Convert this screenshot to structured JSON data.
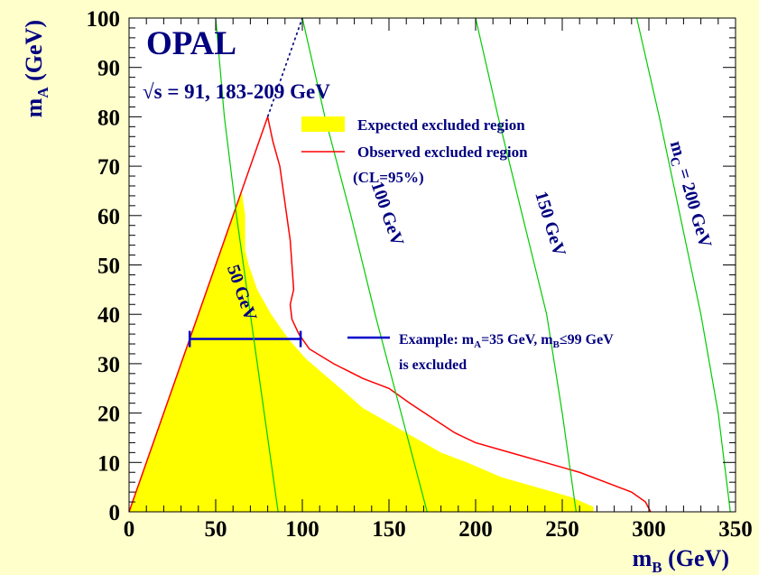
{
  "chart_data": {
    "type": "area",
    "experiment_label": "OPAL",
    "energy_label": "√s = 91, 183-209 GeV",
    "xlabel": "m",
    "xlabel_sub": "B",
    "xlabel_unit": " (GeV)",
    "ylabel": "m",
    "ylabel_sub": "A",
    "ylabel_unit": " (GeV)",
    "xlim": [
      0,
      350
    ],
    "ylim": [
      0,
      100
    ],
    "x_ticks": [
      0,
      50,
      100,
      150,
      200,
      250,
      300,
      350
    ],
    "y_ticks": [
      0,
      10,
      20,
      30,
      40,
      50,
      60,
      70,
      80,
      90,
      100
    ],
    "legend": {
      "expected": "Expected excluded region",
      "observed": "Observed excluded region",
      "cl": "(CL=95%)",
      "example_line1_pre": "Example: m",
      "example_line1_sub1": "A",
      "example_line1_mid": "=35 GeV, m",
      "example_line1_sub2": "B",
      "example_line1_post": "≤99 GeV",
      "example_line2": "is excluded"
    },
    "colors": {
      "background": "#ffffcc",
      "plot_area": "#ffffff",
      "expected_fill": "#ffff00",
      "observed_line": "#ff0000",
      "contour_line": "#00cc00",
      "example_line": "#0000cc",
      "text": "#000080"
    },
    "expected_region": [
      [
        0,
        0
      ],
      [
        65,
        65
      ],
      [
        67,
        60
      ],
      [
        67,
        53
      ],
      [
        69,
        50
      ],
      [
        74,
        45
      ],
      [
        82,
        40
      ],
      [
        92,
        35
      ],
      [
        102,
        31
      ],
      [
        112,
        28
      ],
      [
        122,
        25
      ],
      [
        135,
        21
      ],
      [
        150,
        18
      ],
      [
        165,
        15
      ],
      [
        180,
        12
      ],
      [
        195,
        10
      ],
      [
        215,
        7
      ],
      [
        235,
        5
      ],
      [
        255,
        3
      ],
      [
        268,
        1
      ],
      [
        268,
        0
      ]
    ],
    "observed_boundary": [
      [
        0,
        0
      ],
      [
        80,
        80
      ],
      [
        83,
        75
      ],
      [
        87,
        70
      ],
      [
        89,
        65
      ],
      [
        91,
        60
      ],
      [
        93,
        55
      ],
      [
        94,
        50
      ],
      [
        95,
        45
      ],
      [
        93,
        42
      ],
      [
        94,
        39
      ],
      [
        98,
        36
      ],
      [
        104,
        33
      ],
      [
        118,
        30
      ],
      [
        135,
        27
      ],
      [
        150,
        25
      ],
      [
        162,
        22
      ],
      [
        175,
        19
      ],
      [
        188,
        16
      ],
      [
        200,
        14
      ],
      [
        220,
        12
      ],
      [
        240,
        10
      ],
      [
        260,
        8
      ],
      [
        275,
        6
      ],
      [
        290,
        4
      ],
      [
        298,
        2
      ],
      [
        301,
        0
      ]
    ],
    "kinematic_limit": [
      [
        80,
        80
      ],
      [
        100,
        100
      ]
    ],
    "example": {
      "mA": 35,
      "mB_min": 35,
      "mB_max": 99
    },
    "mass_contours": [
      {
        "label": "50 GeV",
        "mC": 50,
        "points": [
          [
            50,
            100
          ],
          [
            55,
            80
          ],
          [
            62,
            60
          ],
          [
            70,
            40
          ],
          [
            78,
            20
          ],
          [
            86,
            0
          ]
        ],
        "label_at": [
          62,
          44
        ],
        "label_angle": 71
      },
      {
        "label": "100 GeV",
        "mC": 100,
        "points": [
          [
            100,
            100
          ],
          [
            113,
            80
          ],
          [
            128,
            60
          ],
          [
            142,
            40
          ],
          [
            157,
            20
          ],
          [
            172,
            0
          ]
        ],
        "label_at": [
          146,
          60
        ],
        "label_angle": 71
      },
      {
        "label": "150 GeV",
        "mC": 150,
        "points": [
          [
            200,
            100
          ],
          [
            213,
            80
          ],
          [
            227,
            60
          ],
          [
            241,
            40
          ],
          [
            250,
            20
          ],
          [
            258,
            0
          ]
        ],
        "label_at": [
          240,
          58
        ],
        "label_angle": 73
      },
      {
        "label": "m",
        "label_sub": "C",
        "label_post": " = 200 GeV",
        "mC": 200,
        "points": [
          [
            293,
            100
          ],
          [
            306,
            80
          ],
          [
            318,
            60
          ],
          [
            330,
            40
          ],
          [
            340,
            20
          ],
          [
            347,
            0
          ]
        ],
        "label_at": [
          321,
          64
        ],
        "label_angle": 74
      }
    ]
  }
}
